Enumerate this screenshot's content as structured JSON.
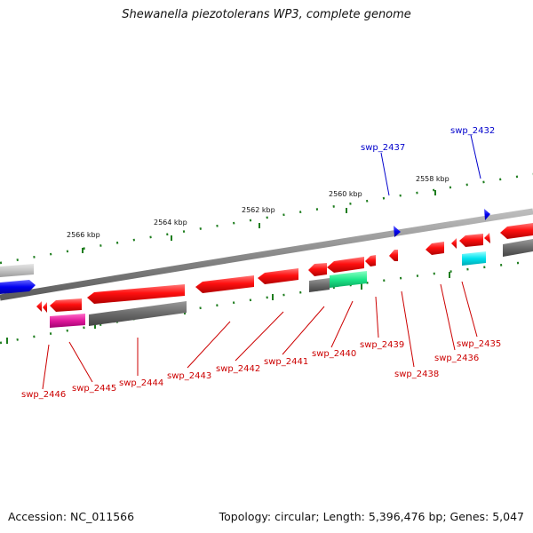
{
  "title": "Shewanella piezotolerans WP3, complete genome",
  "footer": {
    "accession": "Accession: NC_011566",
    "summary": "Topology: circular; Length: 5,396,476 bp; Genes: 5,047"
  },
  "scale_ticks": [
    "2566 kbp",
    "2564 kbp",
    "2562 kbp",
    "2560 kbp",
    "2558 kbp"
  ],
  "colors": {
    "forward_label": "#0000cc",
    "reverse_label": "#cc0000",
    "reverse_gene": "#ee0000",
    "forward_gene": "#0000ee",
    "backbone": "#8a8a8a",
    "tick": "#1e7d1e",
    "pseudo_grey": "#696969",
    "magenta_feature": "#e0189b",
    "green_feature": "#1ee88a",
    "cyan_feature": "#00e2ee"
  },
  "forward_genes": [
    {
      "label": "swp_2437"
    },
    {
      "label": "swp_2432"
    }
  ],
  "reverse_genes": [
    {
      "label": "swp_2446"
    },
    {
      "label": "swp_2445"
    },
    {
      "label": "swp_2444"
    },
    {
      "label": "swp_2443"
    },
    {
      "label": "swp_2442"
    },
    {
      "label": "swp_2441"
    },
    {
      "label": "swp_2440"
    },
    {
      "label": "swp_2439"
    },
    {
      "label": "swp_2438"
    },
    {
      "label": "swp_2436"
    },
    {
      "label": "swp_2435"
    }
  ]
}
